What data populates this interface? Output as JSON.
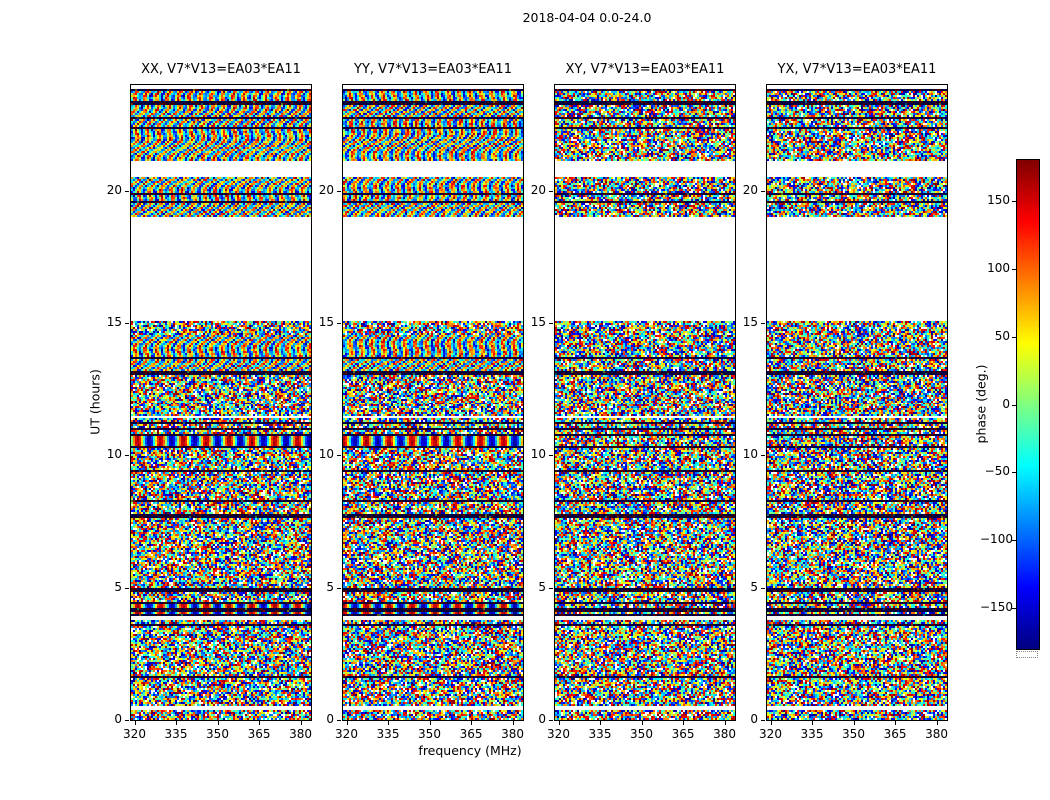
{
  "figure_title": "2018-04-04 0.0-24.0",
  "chart_data": {
    "type": "heatmap",
    "title": "2018-04-04 0.0-24.0",
    "xlabel": "frequency (MHz)",
    "ylabel": "UT (hours)",
    "x_ticks": [
      320,
      335,
      350,
      365,
      380
    ],
    "y_ticks": [
      0,
      5,
      10,
      15,
      20
    ],
    "x_range": [
      318.75,
      383.75
    ],
    "y_range": [
      0,
      24
    ],
    "colormap": "jet",
    "grid": false,
    "panels": [
      {
        "label": "XX, V7*V13=EA03*EA11",
        "coherent": true
      },
      {
        "label": "YY, V7*V13=EA03*EA11",
        "coherent": true
      },
      {
        "label": "XY, V7*V13=EA03*EA11",
        "coherent": false
      },
      {
        "label": "YX, V7*V13=EA03*EA11",
        "coherent": false
      }
    ],
    "colorbar": {
      "label": "phase (deg.)",
      "ticks": [
        150,
        100,
        50,
        0,
        -50,
        -100,
        -150
      ],
      "range": [
        -180,
        180
      ],
      "position": "right"
    },
    "coverage_hours": [
      [
        0.0,
        15.1
      ],
      [
        19.05,
        20.5
      ],
      [
        21.15,
        23.85
      ]
    ],
    "data_gaps_hours": [
      [
        15.1,
        19.05
      ],
      [
        20.5,
        21.15
      ],
      [
        23.85,
        24.0
      ]
    ],
    "fringe_bands": [
      {
        "from": 21.15,
        "to": 23.85,
        "style": "weave"
      },
      {
        "from": 19.05,
        "to": 20.5,
        "style": "weave"
      },
      {
        "from": 13.1,
        "to": 14.6,
        "style": "weave"
      },
      {
        "from": 10.35,
        "to": 10.68,
        "style": "rainbow"
      },
      {
        "from": 3.98,
        "to": 4.35,
        "style": "rainbow"
      }
    ]
  }
}
